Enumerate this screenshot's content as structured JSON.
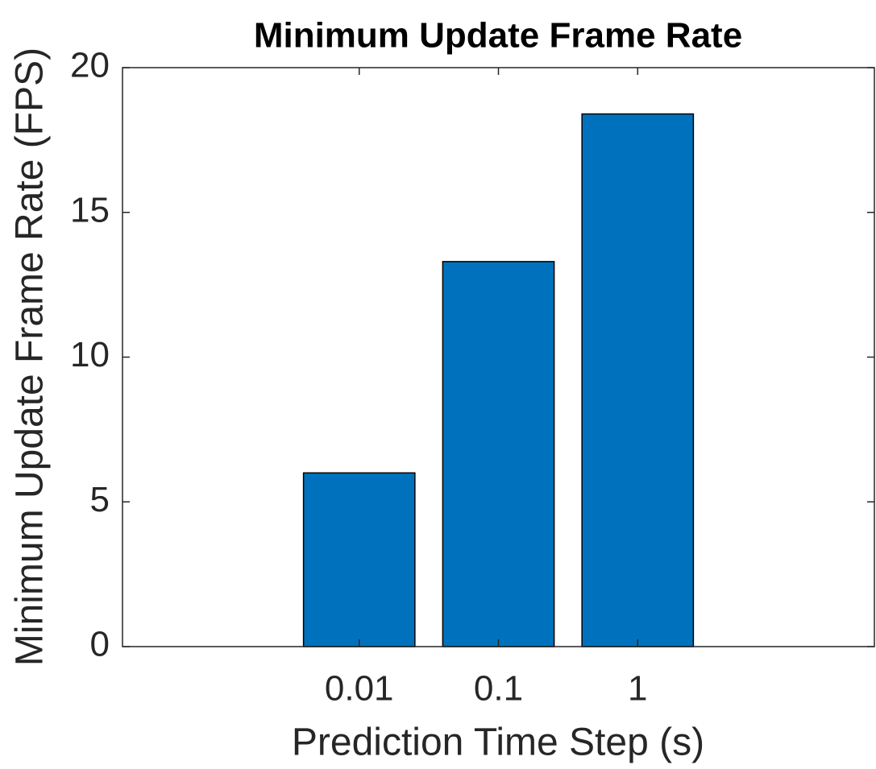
{
  "chart_data": {
    "type": "bar",
    "title": "Minimum Update Frame Rate",
    "x_label": "Prediction Time Step (s)",
    "y_label": "Minimum Update Frame Rate (FPS)",
    "categories": [
      "0.01",
      "0.1",
      "1"
    ],
    "values": [
      6.0,
      13.3,
      18.4
    ],
    "color": "#0072bd",
    "ylim": [
      0,
      20
    ],
    "yticks": [
      0,
      5,
      10,
      15,
      20
    ],
    "grid": false
  }
}
